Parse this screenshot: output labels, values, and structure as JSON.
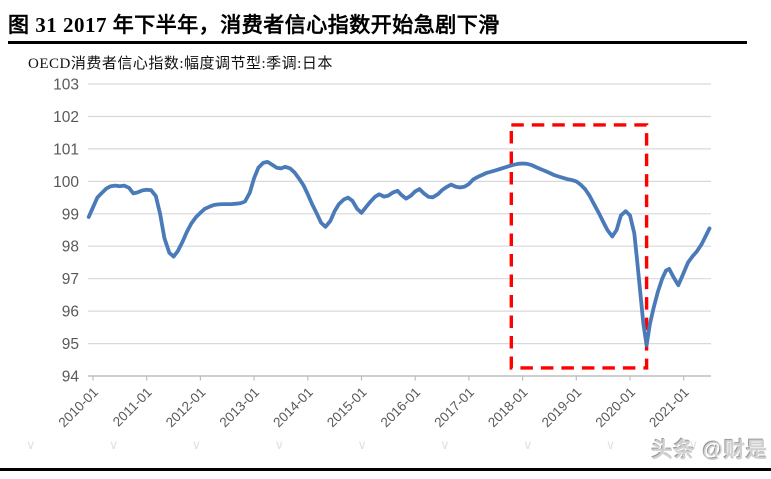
{
  "header": {
    "title": "图 31 2017 年下半年，消费者信心指数开始急剧下滑"
  },
  "chart": {
    "subtitle": "OECD消费者信心指数:幅度调节型:季调:日本"
  },
  "watermark": {
    "text": "头条 @财是",
    "tile_glyph": "∨",
    "tile_count": 10
  },
  "chart_data": {
    "type": "line",
    "title": "OECD消费者信心指数:幅度调节型:季调:日本",
    "xlabel": "",
    "ylabel": "",
    "ylim": [
      94,
      103
    ],
    "xlim_years": [
      2009.9,
      2021.51
    ],
    "grid": true,
    "legend": "none",
    "y_ticks": [
      94,
      95,
      96,
      97,
      98,
      99,
      100,
      101,
      102,
      103
    ],
    "x_tick_years": [
      2010,
      2011,
      2012,
      2013,
      2014,
      2015,
      2016,
      2017,
      2018,
      2019,
      2020,
      2021
    ],
    "x_tick_labels": [
      "2010-01",
      "2011-01",
      "2012-01",
      "2013-01",
      "2014-01",
      "2015-01",
      "2016-01",
      "2017-01",
      "2018-01",
      "2019-01",
      "2020-01",
      "2021-01"
    ],
    "colors": {
      "line": "#4a7ab8",
      "highlight_box": "#ff0000",
      "grid": "#d9d9d9",
      "axis": "#bdbdbd",
      "tick_label": "#595959"
    },
    "highlight_box": {
      "style": "dashed",
      "x1_year": 2017.79,
      "x2_year": 2020.31,
      "y1": 94.25,
      "y2": 101.74,
      "note": "red dashed rectangle marking sharp decline from late 2017 to mid 2020"
    },
    "series": [
      {
        "name": "OECD消费者信心指数:幅度调节型:季调:日本",
        "points": [
          [
            2009.92,
            98.9
          ],
          [
            2010.0,
            99.2
          ],
          [
            2010.08,
            99.5
          ],
          [
            2010.17,
            99.65
          ],
          [
            2010.25,
            99.78
          ],
          [
            2010.33,
            99.85
          ],
          [
            2010.42,
            99.87
          ],
          [
            2010.5,
            99.85
          ],
          [
            2010.58,
            99.87
          ],
          [
            2010.67,
            99.8
          ],
          [
            2010.75,
            99.63
          ],
          [
            2010.83,
            99.66
          ],
          [
            2010.92,
            99.72
          ],
          [
            2011.0,
            99.74
          ],
          [
            2011.08,
            99.73
          ],
          [
            2011.17,
            99.55
          ],
          [
            2011.25,
            99.0
          ],
          [
            2011.33,
            98.25
          ],
          [
            2011.42,
            97.8
          ],
          [
            2011.5,
            97.68
          ],
          [
            2011.58,
            97.85
          ],
          [
            2011.67,
            98.15
          ],
          [
            2011.75,
            98.45
          ],
          [
            2011.83,
            98.7
          ],
          [
            2011.92,
            98.9
          ],
          [
            2012.0,
            99.03
          ],
          [
            2012.08,
            99.15
          ],
          [
            2012.17,
            99.22
          ],
          [
            2012.25,
            99.27
          ],
          [
            2012.33,
            99.29
          ],
          [
            2012.42,
            99.3
          ],
          [
            2012.5,
            99.3
          ],
          [
            2012.58,
            99.3
          ],
          [
            2012.67,
            99.31
          ],
          [
            2012.75,
            99.33
          ],
          [
            2012.83,
            99.38
          ],
          [
            2012.92,
            99.65
          ],
          [
            2013.0,
            100.1
          ],
          [
            2013.08,
            100.42
          ],
          [
            2013.17,
            100.57
          ],
          [
            2013.25,
            100.6
          ],
          [
            2013.33,
            100.52
          ],
          [
            2013.42,
            100.42
          ],
          [
            2013.5,
            100.4
          ],
          [
            2013.58,
            100.45
          ],
          [
            2013.67,
            100.4
          ],
          [
            2013.75,
            100.28
          ],
          [
            2013.83,
            100.1
          ],
          [
            2013.92,
            99.88
          ],
          [
            2014.0,
            99.6
          ],
          [
            2014.08,
            99.3
          ],
          [
            2014.17,
            99.0
          ],
          [
            2014.25,
            98.72
          ],
          [
            2014.33,
            98.6
          ],
          [
            2014.42,
            98.78
          ],
          [
            2014.5,
            99.08
          ],
          [
            2014.58,
            99.3
          ],
          [
            2014.67,
            99.44
          ],
          [
            2014.75,
            99.5
          ],
          [
            2014.83,
            99.4
          ],
          [
            2014.92,
            99.15
          ],
          [
            2015.0,
            99.03
          ],
          [
            2015.08,
            99.2
          ],
          [
            2015.17,
            99.38
          ],
          [
            2015.25,
            99.52
          ],
          [
            2015.33,
            99.6
          ],
          [
            2015.42,
            99.53
          ],
          [
            2015.5,
            99.56
          ],
          [
            2015.58,
            99.65
          ],
          [
            2015.67,
            99.71
          ],
          [
            2015.75,
            99.57
          ],
          [
            2015.83,
            99.47
          ],
          [
            2015.92,
            99.56
          ],
          [
            2016.0,
            99.69
          ],
          [
            2016.08,
            99.76
          ],
          [
            2016.17,
            99.62
          ],
          [
            2016.25,
            99.52
          ],
          [
            2016.33,
            99.51
          ],
          [
            2016.42,
            99.6
          ],
          [
            2016.5,
            99.73
          ],
          [
            2016.58,
            99.82
          ],
          [
            2016.67,
            99.9
          ],
          [
            2016.75,
            99.84
          ],
          [
            2016.83,
            99.81
          ],
          [
            2016.92,
            99.84
          ],
          [
            2017.0,
            99.92
          ],
          [
            2017.08,
            100.06
          ],
          [
            2017.17,
            100.14
          ],
          [
            2017.25,
            100.2
          ],
          [
            2017.33,
            100.26
          ],
          [
            2017.42,
            100.3
          ],
          [
            2017.5,
            100.34
          ],
          [
            2017.58,
            100.38
          ],
          [
            2017.67,
            100.43
          ],
          [
            2017.75,
            100.47
          ],
          [
            2017.83,
            100.51
          ],
          [
            2017.92,
            100.54
          ],
          [
            2018.0,
            100.55
          ],
          [
            2018.08,
            100.54
          ],
          [
            2018.17,
            100.5
          ],
          [
            2018.25,
            100.44
          ],
          [
            2018.33,
            100.38
          ],
          [
            2018.42,
            100.32
          ],
          [
            2018.5,
            100.26
          ],
          [
            2018.58,
            100.2
          ],
          [
            2018.67,
            100.15
          ],
          [
            2018.75,
            100.11
          ],
          [
            2018.83,
            100.07
          ],
          [
            2018.92,
            100.04
          ],
          [
            2019.0,
            100.0
          ],
          [
            2019.08,
            99.9
          ],
          [
            2019.17,
            99.75
          ],
          [
            2019.25,
            99.55
          ],
          [
            2019.33,
            99.3
          ],
          [
            2019.42,
            99.02
          ],
          [
            2019.5,
            98.75
          ],
          [
            2019.58,
            98.5
          ],
          [
            2019.67,
            98.3
          ],
          [
            2019.75,
            98.5
          ],
          [
            2019.83,
            98.95
          ],
          [
            2019.92,
            99.08
          ],
          [
            2020.0,
            98.95
          ],
          [
            2020.08,
            98.4
          ],
          [
            2020.13,
            97.6
          ],
          [
            2020.19,
            96.6
          ],
          [
            2020.25,
            95.6
          ],
          [
            2020.31,
            94.95
          ],
          [
            2020.37,
            95.6
          ],
          [
            2020.44,
            96.1
          ],
          [
            2020.52,
            96.6
          ],
          [
            2020.6,
            97.0
          ],
          [
            2020.67,
            97.25
          ],
          [
            2020.73,
            97.3
          ],
          [
            2020.81,
            97.05
          ],
          [
            2020.9,
            96.8
          ],
          [
            2020.98,
            97.1
          ],
          [
            2021.08,
            97.5
          ],
          [
            2021.17,
            97.7
          ],
          [
            2021.25,
            97.85
          ],
          [
            2021.33,
            98.05
          ],
          [
            2021.42,
            98.35
          ],
          [
            2021.48,
            98.55
          ]
        ]
      }
    ]
  }
}
